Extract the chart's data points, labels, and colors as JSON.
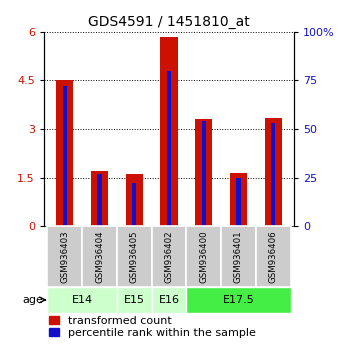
{
  "title": "GDS4591 / 1451810_at",
  "samples": [
    "GSM936403",
    "GSM936404",
    "GSM936405",
    "GSM936402",
    "GSM936400",
    "GSM936401",
    "GSM936406"
  ],
  "transformed_count": [
    4.5,
    1.7,
    1.6,
    5.85,
    3.3,
    1.65,
    3.35
  ],
  "percentile_rank": [
    72,
    27,
    22,
    80,
    54,
    25,
    53
  ],
  "age_groups": [
    {
      "label": "E14",
      "span": [
        0,
        2
      ],
      "color": "#ccffcc"
    },
    {
      "label": "E15",
      "span": [
        2,
        3
      ],
      "color": "#ccffcc"
    },
    {
      "label": "E16",
      "span": [
        3,
        4
      ],
      "color": "#ccffcc"
    },
    {
      "label": "E17.5",
      "span": [
        4,
        7
      ],
      "color": "#44ee44"
    }
  ],
  "left_ylim": [
    0,
    6
  ],
  "left_yticks": [
    0,
    1.5,
    3,
    4.5,
    6
  ],
  "right_ylim": [
    0,
    100
  ],
  "right_yticks": [
    0,
    25,
    50,
    75,
    100
  ],
  "bar_color_red": "#cc1100",
  "bar_color_blue": "#1111cc",
  "red_bar_width": 0.5,
  "blue_bar_width": 0.12,
  "background_sample": "#cccccc",
  "legend_red_label": "transformed count",
  "legend_blue_label": "percentile rank within the sample",
  "age_row_label": "age",
  "title_fontsize": 10,
  "tick_fontsize": 8,
  "legend_fontsize": 8
}
